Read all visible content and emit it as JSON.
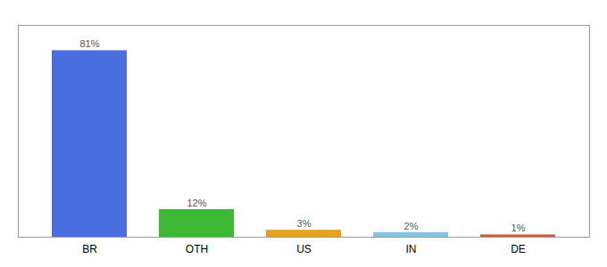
{
  "chart_data": {
    "type": "bar",
    "categories": [
      "BR",
      "OTH",
      "US",
      "IN",
      "DE"
    ],
    "values": [
      81,
      12,
      3,
      2,
      1
    ],
    "value_labels": [
      "81%",
      "12%",
      "3%",
      "2%",
      "1%"
    ],
    "data_labels": true,
    "colors": [
      "#4A6EE0",
      "#3CB832",
      "#E8A020",
      "#7EC8E3",
      "#C8603A"
    ],
    "ylim": [
      0,
      92
    ],
    "tick_labels": "x",
    "grid": false
  }
}
